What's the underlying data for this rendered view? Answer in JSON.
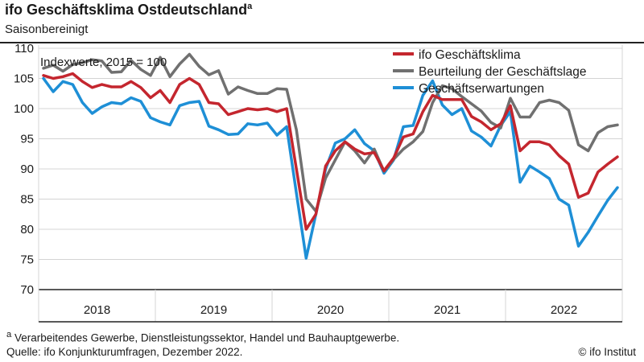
{
  "header": {
    "title": "ifo Geschäftsklima Ostdeutschland",
    "title_sup": "a",
    "subtitle": "Saisonbereinigt"
  },
  "footer": {
    "footnote_sup": "a",
    "footnote": " Verarbeitendes Gewerbe, Dienstleistungssektor, Handel und Bauhauptgewerbe.",
    "source": "Quelle: ifo Konjunkturumfragen, Dezember 2022.",
    "copyright": "© ifo Institut"
  },
  "chart_data": {
    "type": "line",
    "annotation": "Indexwerte, 2015 = 100",
    "ylim": [
      70,
      110
    ],
    "yticks": [
      70,
      75,
      80,
      85,
      90,
      95,
      100,
      105,
      110
    ],
    "years": [
      "2018",
      "2019",
      "2020",
      "2021",
      "2022"
    ],
    "x_start": "2018-01",
    "x_end": "2022-12",
    "grid": true,
    "legend_position": "top-right",
    "series": [
      {
        "name": "ifo Geschäftsklima",
        "color": "#c4262e",
        "values": [
          105.5,
          105.0,
          105.3,
          105.8,
          104.5,
          103.5,
          104.0,
          103.6,
          103.6,
          104.5,
          103.5,
          101.8,
          103.0,
          101.0,
          104.0,
          105.0,
          104.0,
          101.0,
          100.8,
          99.0,
          99.5,
          100.0,
          99.8,
          100.0,
          99.5,
          100.0,
          90.0,
          80.0,
          82.5,
          90.5,
          93.0,
          94.5,
          93.3,
          92.5,
          92.7,
          89.7,
          91.8,
          95.3,
          95.8,
          99.5,
          102.2,
          101.5,
          101.5,
          101.5,
          98.7,
          97.8,
          96.5,
          97.5,
          100.5,
          93.0,
          94.5,
          94.5,
          94.0,
          92.2,
          90.8,
          85.3,
          86.0,
          89.5,
          90.8,
          92.0
        ]
      },
      {
        "name": "Beurteilung der Geschäftslage",
        "color": "#707070",
        "values": [
          106.7,
          107.2,
          106.2,
          107.3,
          107.6,
          108.1,
          107.9,
          106.0,
          106.1,
          108.0,
          106.5,
          105.5,
          108.5,
          105.3,
          107.4,
          109.0,
          107.0,
          105.6,
          106.3,
          102.4,
          103.6,
          103.0,
          102.5,
          102.5,
          103.3,
          103.2,
          96.5,
          85.0,
          83.0,
          88.5,
          91.5,
          94.5,
          93.0,
          91.0,
          93.3,
          89.6,
          91.6,
          93.3,
          94.5,
          96.2,
          101.0,
          103.8,
          103.3,
          102.0,
          100.8,
          99.6,
          97.7,
          96.8,
          101.7,
          98.6,
          98.6,
          101.0,
          101.4,
          101.0,
          99.7,
          94.0,
          93.0,
          96.0,
          97.0,
          97.3
        ]
      },
      {
        "name": "Geschäftserwartungen",
        "color": "#1e8fd6",
        "values": [
          105.0,
          102.8,
          104.5,
          104.0,
          101.0,
          99.2,
          100.3,
          101.0,
          100.8,
          101.8,
          101.2,
          98.5,
          97.8,
          97.3,
          100.5,
          101.0,
          101.2,
          97.1,
          96.5,
          95.7,
          95.8,
          97.5,
          97.3,
          97.6,
          95.6,
          97.0,
          86.0,
          75.2,
          82.5,
          90.0,
          94.3,
          95.0,
          96.5,
          94.2,
          93.0,
          89.3,
          91.5,
          97.0,
          97.2,
          102.2,
          104.6,
          100.6,
          99.0,
          100.0,
          96.3,
          95.3,
          93.8,
          97.2,
          99.5,
          87.8,
          90.5,
          89.5,
          88.4,
          85.0,
          84.0,
          77.2,
          79.5,
          82.2,
          84.8,
          86.9
        ]
      }
    ]
  }
}
